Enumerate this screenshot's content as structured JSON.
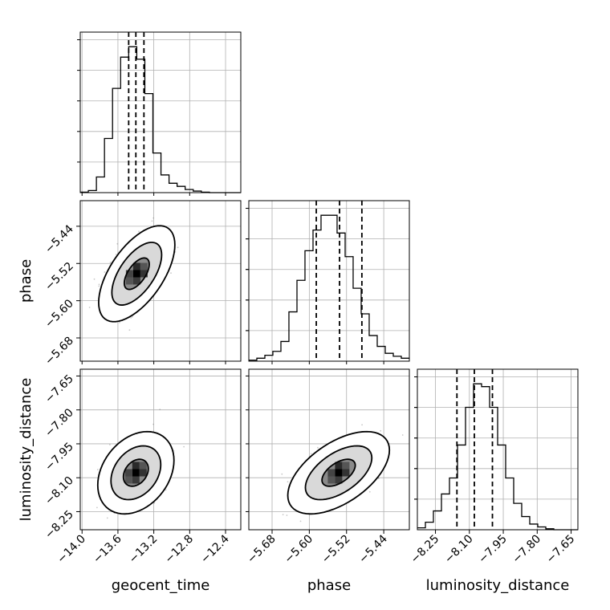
{
  "chart_data": {
    "type": "corner",
    "title": "",
    "parameters": [
      "geocent_time",
      "phase",
      "luminosity_distance"
    ],
    "axis_labels": {
      "geocent_time": "geocent_time",
      "phase": "phase",
      "luminosity_distance": "luminosity_distance"
    },
    "ranges": {
      "geocent_time": [
        -14.02,
        -12.23
      ],
      "phase": [
        -5.73,
        -5.385
      ],
      "luminosity_distance": [
        -8.33,
        -7.62
      ]
    },
    "ticks": {
      "geocent_time": [
        -14.0,
        -13.6,
        -13.2,
        -12.8,
        -12.4
      ],
      "phase": [
        -5.68,
        -5.6,
        -5.52,
        -5.44
      ],
      "luminosity_distance": [
        -8.25,
        -8.1,
        -7.95,
        -7.8,
        -7.65
      ]
    },
    "tick_labels": {
      "geocent_time": [
        "−14.0",
        "−13.6",
        "−13.2",
        "−12.8",
        "−12.4"
      ],
      "phase": [
        "−5.68",
        "−5.60",
        "−5.52",
        "−5.44"
      ],
      "luminosity_distance": [
        "−8.25",
        "−8.10",
        "−7.95",
        "−7.80",
        "−7.65"
      ]
    },
    "quantiles": {
      "geocent_time": [
        -13.48,
        -13.4,
        -13.31
      ],
      "phase": [
        -5.585,
        -5.535,
        -5.487
      ],
      "luminosity_distance": [
        -8.155,
        -8.078,
        -7.998
      ]
    },
    "histograms": {
      "geocent_time": {
        "edges": [
          -14.02,
          -13.93,
          -13.84,
          -13.75,
          -13.66,
          -13.57,
          -13.48,
          -13.39,
          -13.3,
          -13.21,
          -13.12,
          -13.03,
          -12.94,
          -12.85,
          -12.76,
          -12.67,
          -12.58,
          -12.49,
          -12.4,
          -12.31,
          -12.23
        ],
        "counts": [
          0.5,
          2,
          15,
          52,
          100,
          130,
          140,
          128,
          95,
          38,
          17,
          9,
          6,
          3,
          1.5,
          0.5,
          0,
          0,
          0,
          0
        ]
      },
      "phase": {
        "edges": [
          -5.73,
          -5.7128,
          -5.6955,
          -5.6783,
          -5.661,
          -5.6438,
          -5.6265,
          -5.6093,
          -5.592,
          -5.5748,
          -5.5575,
          -5.5403,
          -5.523,
          -5.5058,
          -5.4885,
          -5.4713,
          -5.454,
          -5.4368,
          -5.4195,
          -5.4023,
          -5.385
        ],
        "counts": [
          1,
          3,
          6,
          10,
          20,
          50,
          82,
          112,
          133,
          148,
          148,
          130,
          106,
          74,
          48,
          26,
          15,
          8,
          5,
          3
        ]
      },
      "luminosity_distance": {
        "edges": [
          -8.33,
          -8.2945,
          -8.259,
          -8.2235,
          -8.188,
          -8.1525,
          -8.117,
          -8.0815,
          -8.046,
          -8.0105,
          -7.975,
          -7.9395,
          -7.904,
          -7.8685,
          -7.833,
          -7.7975,
          -7.762,
          -7.7265,
          -7.691,
          -7.6555,
          -7.62
        ],
        "counts": [
          2,
          8,
          20,
          38,
          55,
          90,
          130,
          155,
          152,
          130,
          90,
          55,
          28,
          14,
          6,
          3,
          1,
          0,
          0,
          0
        ]
      }
    },
    "pairs": [
      {
        "x": "geocent_time",
        "y": "phase",
        "center": [
          -13.39,
          -5.542
        ],
        "sd": [
          0.14,
          0.034
        ],
        "correlation": 0.6,
        "levels": [
          0.39,
          0.86,
          0.99
        ]
      },
      {
        "x": "geocent_time",
        "y": "luminosity_distance",
        "center": [
          -13.4,
          -8.078
        ],
        "sd": [
          0.14,
          0.06
        ],
        "correlation": 0.3,
        "levels": [
          0.39,
          0.86,
          0.99
        ]
      },
      {
        "x": "phase",
        "y": "luminosity_distance",
        "center": [
          -5.537,
          -8.078
        ],
        "sd": [
          0.036,
          0.06
        ],
        "correlation": 0.55,
        "levels": [
          0.39,
          0.86,
          0.99
        ]
      }
    ],
    "grid": true,
    "colors": {
      "line": "#000000",
      "scatter": "#888888",
      "grid": "#b0b0b0"
    }
  }
}
